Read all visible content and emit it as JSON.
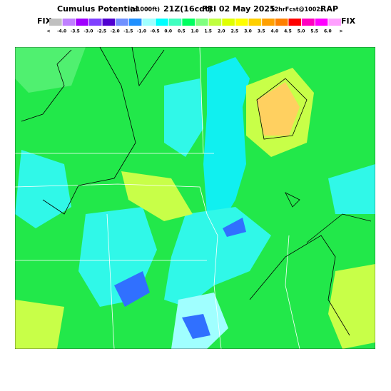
{
  "header": {
    "title": "Cumulus Potential",
    "units": "(x1000ft)",
    "valid_time": "21Z(16cdt)",
    "date": "FRI 02 May 2025",
    "forecast": "12hrFcst@1002z",
    "model": "RAP"
  },
  "legend": {
    "left_label": "FIX",
    "right_label": "FIX",
    "labels": [
      "<",
      "-4.0",
      "-3.5",
      "-3.0",
      "-2.5",
      "-2.0",
      "-1.5",
      "-1.0",
      "-0.5",
      "0.0",
      "0.5",
      "1.0",
      "1.5",
      "2.0",
      "2.5",
      "3.0",
      "3.5",
      "4.0",
      "4.5",
      "5.0",
      "5.5",
      "6.0",
      ">"
    ]
  }
}
